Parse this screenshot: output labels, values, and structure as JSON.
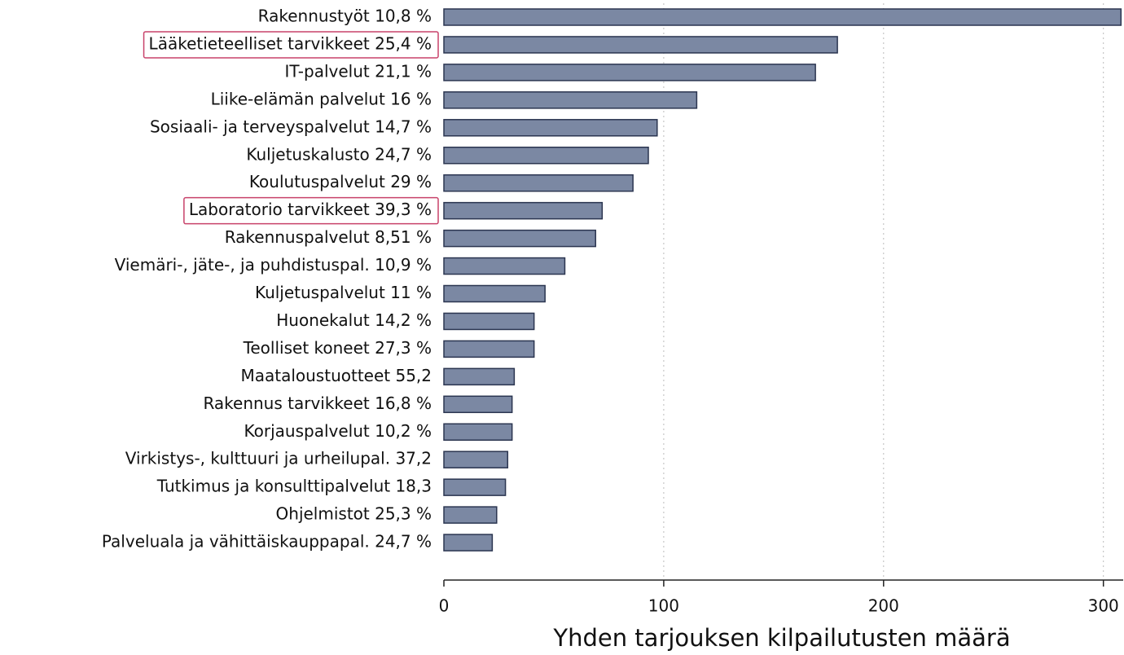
{
  "chart_data": {
    "type": "barh",
    "xlabel": "Yhden tarjouksen kilpailutusten määrä",
    "categories": [
      "Rakennustyöt 10,8 %",
      "Lääketieteelliset tarvikkeet 25,4 %",
      "IT-palvelut 21,1 %",
      "Liike-elämän palvelut 16 %",
      "Sosiaali- ja terveyspalvelut 14,7 %",
      "Kuljetuskalusto 24,7 %",
      "Koulutuspalvelut 29 %",
      "Laboratorio tarvikkeet 39,3 %",
      "Rakennuspalvelut 8,51 %",
      "Viemäri-, jäte-, ja puhdistuspal. 10,9 %",
      "Kuljetuspalvelut 11 %",
      "Huonekalut 14,2 %",
      "Teolliset koneet 27,3 %",
      "Maataloustuotteet 55,2",
      "Rakennus tarvikkeet 16,8 %",
      "Korjauspalvelut 10,2 %",
      "Virkistys-, kulttuuri ja urheilupal. 37,2",
      "Tutkimus ja konsulttipalvelut 18,3",
      "Ohjelmistot 25,3 %",
      "Palveluala ja vähittäiskauppapal. 24,7 %"
    ],
    "values": [
      308,
      179,
      169,
      115,
      97,
      93,
      86,
      72,
      69,
      55,
      46,
      41,
      41,
      32,
      31,
      31,
      29,
      28,
      24,
      22
    ],
    "color": "#7b88a3",
    "edge_color": "#2b3550",
    "highlight": [
      1,
      7
    ],
    "highlight_color": "#c8426a",
    "xlim": [
      0,
      309
    ],
    "xticks": [
      0,
      100,
      200,
      300
    ],
    "grid": true
  }
}
